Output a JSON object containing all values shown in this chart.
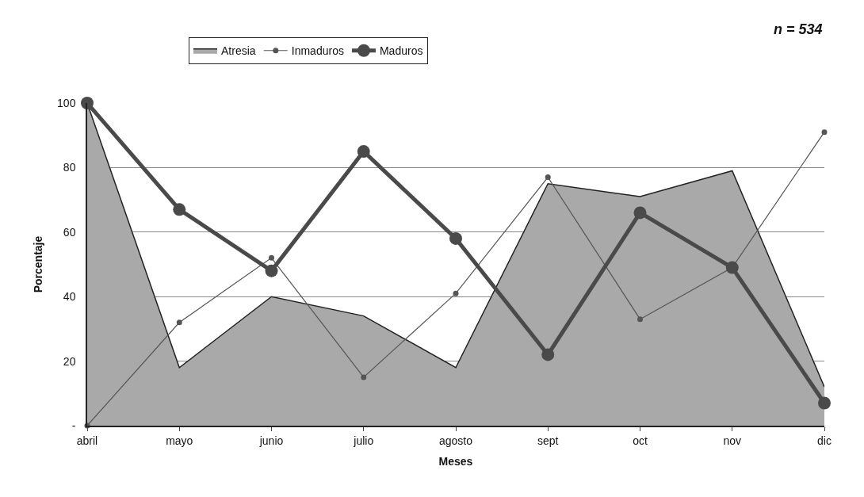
{
  "chart_data": {
    "type": "line",
    "xlabel": "Meses",
    "ylabel": "Porcentaje",
    "annotations": [
      "n = 534"
    ],
    "categories": [
      "abril",
      "mayo",
      "junio",
      "julio",
      "agosto",
      "sept",
      "oct",
      "nov",
      "dic"
    ],
    "series": [
      {
        "name": "Atresia",
        "type": "area",
        "color": "#a9a9a9",
        "marker": "none",
        "values": [
          100,
          18,
          40,
          34,
          18,
          75,
          71,
          79,
          12
        ]
      },
      {
        "name": "Inmaduros",
        "type": "line",
        "color": "#555555",
        "marker": "circle",
        "values": [
          0,
          32,
          52,
          15,
          41,
          77,
          33,
          49,
          91
        ]
      },
      {
        "name": "Maduros",
        "color": "#4a4a4a",
        "marker": "circle",
        "values": [
          100,
          67,
          48,
          85,
          58,
          22,
          66,
          49,
          7
        ]
      }
    ],
    "ylim": [
      0,
      100
    ],
    "yticks": [
      {
        "value": 0,
        "label": "-"
      },
      20,
      40,
      60,
      80,
      100
    ],
    "grid": "y",
    "legend": "top",
    "line_style": "solid"
  }
}
